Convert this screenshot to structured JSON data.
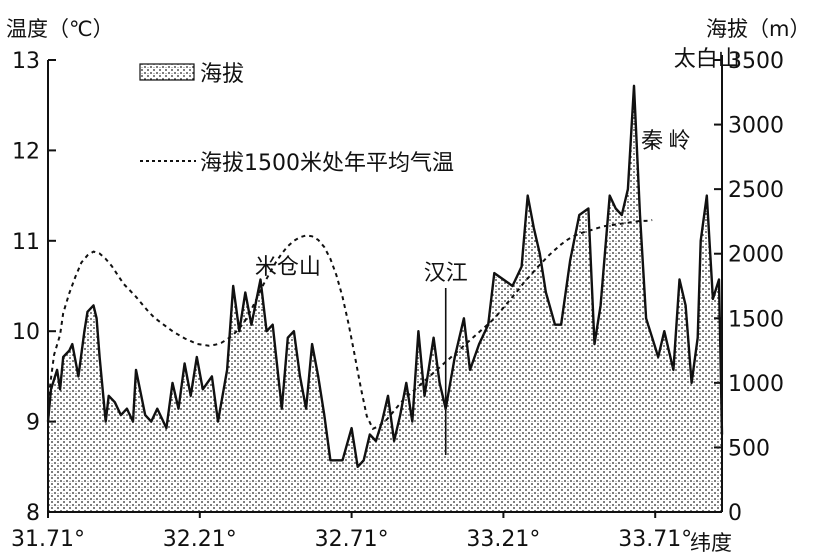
{
  "chart_data": {
    "type": "area",
    "left_axis_title": "温度（℃）",
    "right_axis_title": "海拔（m）",
    "x_axis_title": "纬度",
    "x_ticks": [
      "31.71°",
      "32.21°",
      "32.71°",
      "33.21°",
      "33.71°"
    ],
    "x_tick_values": [
      31.71,
      32.21,
      32.71,
      33.21,
      33.71
    ],
    "xlim": [
      31.71,
      33.93
    ],
    "left_ticks": [
      "8",
      "9",
      "10",
      "11",
      "12",
      "13"
    ],
    "left_tick_values": [
      8,
      9,
      10,
      11,
      12,
      13
    ],
    "ylim_left": [
      8,
      13
    ],
    "right_ticks": [
      "0",
      "500",
      "1000",
      "1500",
      "2000",
      "2500",
      "3000",
      "3500"
    ],
    "right_tick_values": [
      0,
      500,
      1000,
      1500,
      2000,
      2500,
      3000,
      3500
    ],
    "ylim_right": [
      0,
      3500
    ],
    "legend": [
      {
        "label": "海拔",
        "style": "stippled area"
      },
      {
        "label": "海拔1500米处年平均气温",
        "style": "dashed line"
      }
    ],
    "series": [
      {
        "name": "海拔",
        "axis": "right",
        "x": [
          31.71,
          31.72,
          31.74,
          31.75,
          31.76,
          31.78,
          31.79,
          31.81,
          31.83,
          31.84,
          31.86,
          31.87,
          31.88,
          31.9,
          31.91,
          31.93,
          31.95,
          31.97,
          31.99,
          32.0,
          32.03,
          32.05,
          32.07,
          32.1,
          32.12,
          32.14,
          32.16,
          32.18,
          32.2,
          32.22,
          32.25,
          32.27,
          32.3,
          32.32,
          32.34,
          32.36,
          32.38,
          32.41,
          32.43,
          32.45,
          32.48,
          32.5,
          32.52,
          32.54,
          32.56,
          32.58,
          32.6,
          32.62,
          32.64,
          32.66,
          32.68,
          32.71,
          32.73,
          32.75,
          32.77,
          32.79,
          32.81,
          32.83,
          32.85,
          32.87,
          32.89,
          32.91,
          32.93,
          32.95,
          32.98,
          33.0,
          33.02,
          33.05,
          33.08,
          33.1,
          33.13,
          33.16,
          33.18,
          33.21,
          33.24,
          33.27,
          33.29,
          33.31,
          33.33,
          33.35,
          33.38,
          33.4,
          33.43,
          33.46,
          33.49,
          33.51,
          33.53,
          33.56,
          33.58,
          33.6,
          33.62,
          33.64,
          33.66,
          33.68,
          33.7,
          33.72,
          33.74,
          33.77,
          33.79,
          33.81,
          33.83,
          33.85,
          33.86,
          33.88,
          33.9,
          33.92,
          33.93
        ],
        "values": [
          700,
          950,
          1100,
          950,
          1200,
          1250,
          1300,
          1050,
          1400,
          1550,
          1600,
          1500,
          1200,
          700,
          900,
          850,
          750,
          800,
          700,
          1100,
          750,
          700,
          800,
          650,
          1000,
          800,
          1150,
          900,
          1200,
          950,
          1050,
          700,
          1100,
          1750,
          1400,
          1700,
          1450,
          1800,
          1400,
          1450,
          800,
          1350,
          1400,
          1050,
          800,
          1300,
          1050,
          750,
          400,
          400,
          400,
          650,
          350,
          400,
          600,
          550,
          700,
          900,
          550,
          750,
          1000,
          700,
          1400,
          900,
          1350,
          1000,
          800,
          1200,
          1500,
          1100,
          1300,
          1450,
          1850,
          1800,
          1750,
          1900,
          2450,
          2200,
          2000,
          1700,
          1450,
          1450,
          1950,
          2300,
          2350,
          1300,
          1600,
          2450,
          2350,
          2300,
          2500,
          3300,
          2300,
          1500,
          1350,
          1200,
          1400,
          1100,
          1800,
          1600,
          1000,
          1350,
          2100,
          2450,
          1650,
          1800,
          600
        ],
        "color": "#111111"
      },
      {
        "name": "海拔1500米处年平均气温",
        "axis": "left",
        "x": [
          31.71,
          31.72,
          31.73,
          31.75,
          31.76,
          31.78,
          31.8,
          31.82,
          31.84,
          31.86,
          31.88,
          31.9,
          31.92,
          31.94,
          31.96,
          31.98,
          32.0,
          32.02,
          32.04,
          32.06,
          32.08,
          32.1,
          32.12,
          32.14,
          32.16,
          32.18,
          32.2,
          32.22,
          32.24,
          32.26,
          32.28,
          32.3,
          32.32,
          32.34,
          32.36,
          32.38,
          32.4,
          32.42,
          32.44,
          32.46,
          32.48,
          32.5,
          32.52,
          32.54,
          32.56,
          32.58,
          32.6,
          32.62,
          32.64,
          32.66,
          32.68,
          32.7,
          32.72,
          32.74,
          32.76,
          32.78,
          32.8,
          32.82,
          32.84,
          32.86,
          32.88,
          32.9,
          32.92,
          32.94,
          32.96,
          32.98,
          33.0,
          33.02,
          33.04,
          33.06,
          33.08,
          33.1,
          33.12,
          33.14,
          33.16,
          33.18,
          33.2,
          33.22,
          33.24,
          33.26,
          33.28,
          33.3,
          33.32,
          33.34,
          33.36,
          33.38,
          33.4,
          33.42,
          33.44,
          33.46,
          33.48,
          33.5,
          33.52,
          33.54,
          33.56,
          33.58,
          33.6,
          33.62,
          33.64,
          33.66,
          33.68,
          33.7
        ],
        "values": [
          9.2,
          9.48,
          9.74,
          9.96,
          10.2,
          10.42,
          10.6,
          10.76,
          10.84,
          10.88,
          10.86,
          10.8,
          10.72,
          10.62,
          10.52,
          10.45,
          10.38,
          10.3,
          10.22,
          10.15,
          10.1,
          10.05,
          10.0,
          9.96,
          9.92,
          9.89,
          9.86,
          9.85,
          9.84,
          9.85,
          9.87,
          9.91,
          9.96,
          10.03,
          10.12,
          10.24,
          10.38,
          10.52,
          10.64,
          10.76,
          10.86,
          10.94,
          11.0,
          11.04,
          11.06,
          11.05,
          11.01,
          10.93,
          10.8,
          10.62,
          10.38,
          10.08,
          9.74,
          9.38,
          9.06,
          8.92,
          8.95,
          9.0,
          9.08,
          9.16,
          9.24,
          9.3,
          9.36,
          9.42,
          9.48,
          9.54,
          9.6,
          9.66,
          9.72,
          9.78,
          9.84,
          9.9,
          9.96,
          10.02,
          10.08,
          10.14,
          10.22,
          10.3,
          10.38,
          10.46,
          10.55,
          10.62,
          10.7,
          10.77,
          10.84,
          10.9,
          10.96,
          11.01,
          11.05,
          11.08,
          11.1,
          11.12,
          11.14,
          11.16,
          11.17,
          11.18,
          11.19,
          11.2,
          11.21,
          11.22,
          11.22,
          11.23
        ],
        "color": "#111111"
      }
    ],
    "annotations": [
      {
        "text": "米仓山",
        "x": 32.5
      },
      {
        "text": "汉江",
        "x": 33.02
      },
      {
        "text": "秦",
        "x": 33.7
      },
      {
        "text": "岭",
        "x": 33.79
      },
      {
        "text": "太白山",
        "x": 33.88
      }
    ]
  }
}
